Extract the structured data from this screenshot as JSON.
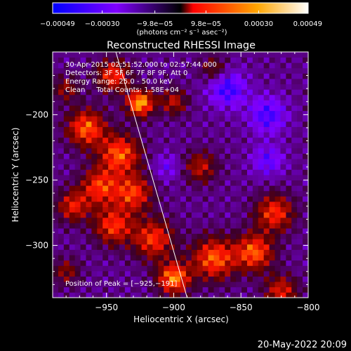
{
  "colorbar": {
    "tick_labels": [
      "−0.00049",
      "−0.00030",
      "−9.8e−05",
      "9.8e−05",
      "0.00030",
      "0.00049"
    ],
    "tick_values": [
      -0.00049,
      -0.0003,
      -9.8e-05,
      9.8e-05,
      0.0003,
      0.00049
    ],
    "range": [
      -0.00049,
      0.00049
    ],
    "units_label": "(photons cm⁻² s⁻¹ asec⁻²)"
  },
  "chart_data": {
    "type": "heatmap",
    "title": "Reconstructed RHESSI Image",
    "xlabel": "Heliocentric X (arcsec)",
    "ylabel": "Heliocentric Y (arcsec)",
    "xlim": [
      -990,
      -800
    ],
    "ylim": [
      -340,
      -152
    ],
    "x_ticks": [
      -950,
      -900,
      -850,
      -800
    ],
    "x_tick_labels": [
      "−950",
      "−900",
      "−850",
      "−800"
    ],
    "y_ticks": [
      -200,
      -250,
      -300
    ],
    "y_tick_labels": [
      "−200",
      "−250",
      "−300"
    ],
    "annotations": [
      "30-Apr-2015 02:51:52.000 to 02:57:44.000",
      "Detectors: 3F 5F 6F 7F 8F 9F, Att 0",
      "Energy Range: 25.0 - 50.0 keV",
      "Clean     Total Counts: 1.58E+04"
    ],
    "peak_label": "Position of Peak = [−925,−191]",
    "peak": [
      -925,
      -191
    ],
    "limb_line": [
      [
        -943,
        -152
      ],
      [
        -890,
        -340
      ]
    ],
    "colormap": [
      "#0000ff",
      "#8000ff",
      "#000000",
      "#ff0000",
      "#ffa500",
      "#ffffff"
    ],
    "sources": [
      {
        "x": -925,
        "y": -191,
        "r": 10,
        "a": 1.0
      },
      {
        "x": -945,
        "y": -170,
        "r": 12,
        "a": 0.7
      },
      {
        "x": -965,
        "y": -210,
        "r": 14,
        "a": 0.8
      },
      {
        "x": -940,
        "y": -230,
        "r": 15,
        "a": 0.8
      },
      {
        "x": -955,
        "y": -255,
        "r": 14,
        "a": 0.7
      },
      {
        "x": -930,
        "y": -260,
        "r": 14,
        "a": 0.7
      },
      {
        "x": -975,
        "y": -270,
        "r": 12,
        "a": 0.6
      },
      {
        "x": -945,
        "y": -285,
        "r": 14,
        "a": 0.7
      },
      {
        "x": -915,
        "y": -295,
        "r": 15,
        "a": 0.7
      },
      {
        "x": -900,
        "y": -325,
        "r": 12,
        "a": 0.9
      },
      {
        "x": -870,
        "y": -310,
        "r": 16,
        "a": 0.8
      },
      {
        "x": -840,
        "y": -305,
        "r": 14,
        "a": 0.8
      },
      {
        "x": -825,
        "y": -275,
        "r": 14,
        "a": 0.7
      },
      {
        "x": -880,
        "y": -240,
        "r": 12,
        "a": 0.5
      },
      {
        "x": -900,
        "y": -190,
        "r": 10,
        "a": 0.5
      },
      {
        "x": -870,
        "y": -165,
        "r": 10,
        "a": 0.4
      },
      {
        "x": -820,
        "y": -335,
        "r": 12,
        "a": 0.6
      },
      {
        "x": -980,
        "y": -180,
        "r": 10,
        "a": 0.4
      },
      {
        "x": -980,
        "y": -320,
        "r": 10,
        "a": 0.4
      },
      {
        "x": -860,
        "y": -180,
        "r": 14,
        "a": -0.55
      },
      {
        "x": -830,
        "y": -200,
        "r": 14,
        "a": -0.5
      },
      {
        "x": -830,
        "y": -235,
        "r": 12,
        "a": -0.4
      },
      {
        "x": -905,
        "y": -240,
        "r": 10,
        "a": -0.3
      }
    ]
  },
  "footer": {
    "timestamp": "20-May-2022 20:09"
  }
}
